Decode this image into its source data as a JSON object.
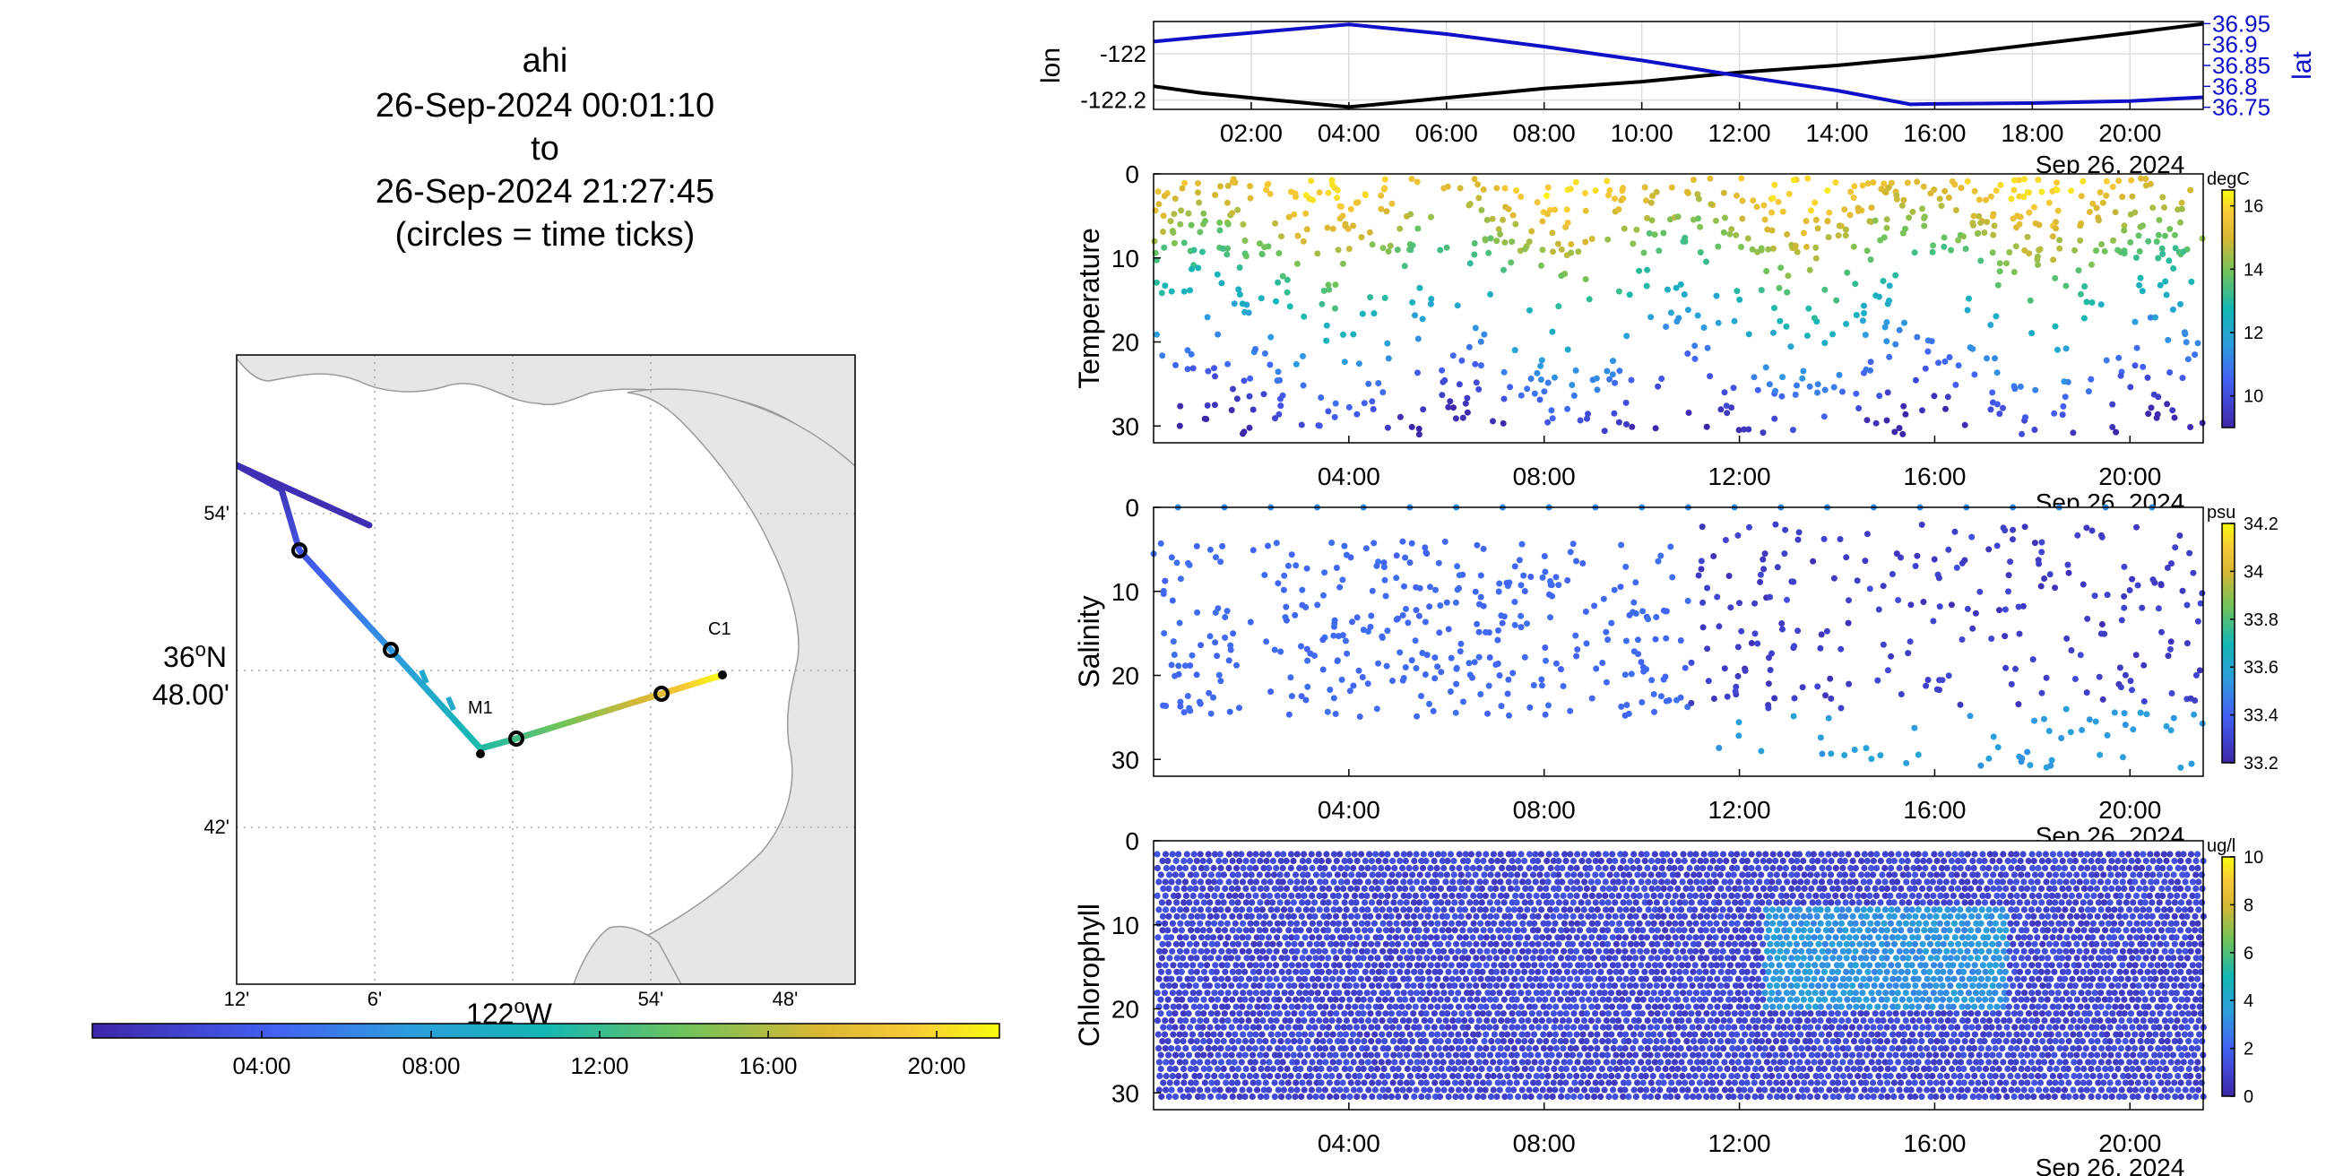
{
  "title": {
    "lines": [
      "ahi",
      "26-Sep-2024 00:01:10",
      "to",
      "26-Sep-2024 21:27:45",
      "(circles = time ticks)"
    ]
  },
  "map": {
    "lat_ticks": [
      "54'",
      "36",
      "48.00'",
      "42'"
    ],
    "lat_deg_suffix": "o",
    "lat_hemi": "N",
    "lon_ticks": [
      "12'",
      "6'",
      "54'",
      "48'"
    ],
    "lon_center_label": "122",
    "lon_deg_suffix": "o",
    "lon_hemi": "W",
    "stations": [
      "M1",
      "C1"
    ],
    "colorbar_ticks": [
      "04:00",
      "08:00",
      "12:00",
      "16:00",
      "20:00"
    ],
    "colors": {
      "land": "#e6e6e6",
      "coast": "#9a9a9a",
      "grid": "#aaaaaa"
    }
  },
  "chart_data": [
    {
      "type": "line",
      "title": "",
      "ylabel_left": "lon",
      "ylabel_right": "lat",
      "xlabel": "Sep 26, 2024",
      "x_ticks": [
        "02:00",
        "04:00",
        "06:00",
        "08:00",
        "10:00",
        "12:00",
        "14:00",
        "16:00",
        "18:00",
        "20:00"
      ],
      "x_hours_range": [
        0,
        21.5
      ],
      "left_ticks": [
        "-122",
        "-122.2"
      ],
      "right_ticks": [
        "36.95",
        "36.9",
        "36.85",
        "36.8",
        "36.75"
      ],
      "series": [
        {
          "name": "lon",
          "axis": "left",
          "color": "#000000",
          "x": [
            0,
            1,
            2,
            3,
            4,
            6,
            8,
            10,
            12,
            14,
            16,
            18,
            20,
            21.5
          ],
          "y": [
            -122.14,
            -122.17,
            -122.19,
            -122.21,
            -122.23,
            -122.19,
            -122.15,
            -122.12,
            -122.08,
            -122.05,
            -122.01,
            -121.96,
            -121.91,
            -121.87
          ]
        },
        {
          "name": "lat",
          "axis": "right",
          "color": "#1010c8",
          "x": [
            0,
            1,
            2,
            3,
            4,
            6,
            8,
            10,
            12,
            14,
            15.5,
            16,
            18,
            20,
            21.5
          ],
          "y": [
            36.907,
            36.918,
            36.928,
            36.938,
            36.948,
            36.925,
            36.895,
            36.862,
            36.825,
            36.79,
            36.757,
            36.758,
            36.76,
            36.765,
            36.774
          ]
        }
      ]
    },
    {
      "type": "scatter",
      "ylabel": "Temperature",
      "xlabel": "Sep 26, 2024",
      "x_ticks": [
        "04:00",
        "08:00",
        "12:00",
        "16:00",
        "20:00"
      ],
      "x_hours_range": [
        0,
        21.5
      ],
      "y_ticks": [
        "0",
        "10",
        "20",
        "30"
      ],
      "ylim": [
        0,
        32
      ],
      "colorbar": {
        "unit": "degC",
        "ticks": [
          "16",
          "14",
          "12",
          "10"
        ],
        "range": [
          9,
          16.5
        ]
      }
    },
    {
      "type": "scatter",
      "ylabel": "Salinity",
      "xlabel": "Sep 26, 2024",
      "x_ticks": [
        "04:00",
        "08:00",
        "12:00",
        "16:00",
        "20:00"
      ],
      "x_hours_range": [
        0,
        21.5
      ],
      "y_ticks": [
        "0",
        "10",
        "20",
        "30"
      ],
      "ylim": [
        0,
        32
      ],
      "colorbar": {
        "unit": "psu",
        "ticks": [
          "34.2",
          "34",
          "33.8",
          "33.6",
          "33.4",
          "33.2"
        ],
        "range": [
          33.2,
          34.2
        ]
      }
    },
    {
      "type": "scatter",
      "ylabel": "Chlorophyll",
      "xlabel": "Sep 26, 2024",
      "x_ticks": [
        "04:00",
        "08:00",
        "12:00",
        "16:00",
        "20:00"
      ],
      "x_hours_range": [
        0,
        21.5
      ],
      "y_ticks": [
        "0",
        "10",
        "20",
        "30"
      ],
      "ylim": [
        0,
        32
      ],
      "colorbar": {
        "unit": "ug/l",
        "ticks": [
          "10",
          "8",
          "6",
          "4",
          "2",
          "0"
        ],
        "range": [
          0,
          10
        ]
      }
    }
  ]
}
